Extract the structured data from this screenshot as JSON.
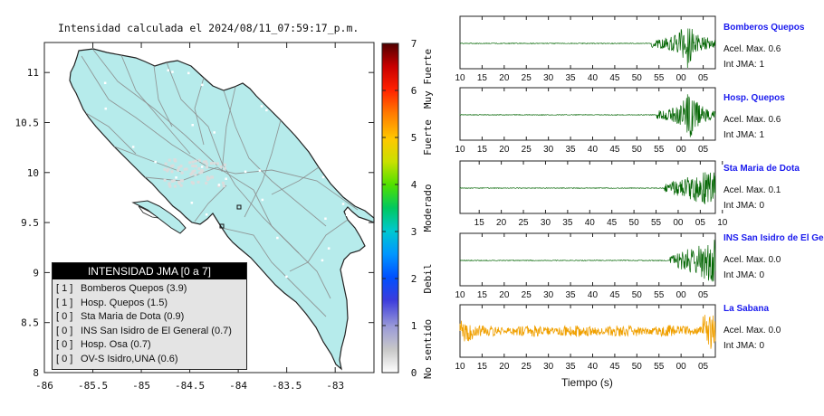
{
  "map": {
    "title": "Intensidad calculada el 2024/08/11_07:59:17_p.m.",
    "x_ticks": [
      "-86",
      "-85.5",
      "-85",
      "-84.5",
      "-84",
      "-83.5",
      "-83"
    ],
    "y_ticks": [
      "11",
      "10.5",
      "10",
      "9.5",
      "9",
      "8.5",
      "8"
    ],
    "colors": {
      "land": "#b6ebeb",
      "sea": "#ffffff",
      "border": "#222222",
      "roads": "#8a8a8a",
      "stations": "#dcdcdc"
    }
  },
  "colorbar": {
    "ticks": [
      "7",
      "6",
      "5",
      "4",
      "3",
      "2",
      "1",
      "0"
    ],
    "labels": [
      "Muy Fuerte",
      "Fuerte",
      "Moderado",
      "Debil",
      "No sentido"
    ]
  },
  "legend": {
    "header": "INTENSIDAD JMA [0 a 7]",
    "items": [
      {
        "level": "[ 1 ]",
        "text": "Bomberos Quepos (3.9)"
      },
      {
        "level": "[ 1 ]",
        "text": "Hosp. Quepos (1.5)"
      },
      {
        "level": "[ 0 ]",
        "text": "Sta Maria de Dota (0.9)"
      },
      {
        "level": "[ 0 ]",
        "text": "INS San Isidro de El General (0.7)"
      },
      {
        "level": "[ 0 ]",
        "text": "Hosp. Osa (0.7)"
      },
      {
        "level": "[ 0 ]",
        "text": "OV-S Isidro,UNA (0.6)"
      }
    ]
  },
  "stations": [
    {
      "name": "Bomberos Quepos",
      "accel": "Acel. Max. 0.6",
      "int": "Int JMA: 1",
      "color": "#006400"
    },
    {
      "name": "Hosp. Quepos",
      "accel": "Acel. Max. 0.6",
      "int": "Int JMA: 1",
      "color": "#006400"
    },
    {
      "name": "Sta Maria de Dota",
      "accel": "Acel. Max. 0.1",
      "int": "Int JMA: 0",
      "color": "#006400"
    },
    {
      "name": "INS San Isidro de El Ge",
      "accel": "Acel. Max. 0.0",
      "int": "Int JMA: 0",
      "color": "#006400"
    },
    {
      "name": "La Sabana",
      "accel": "Acel. Max. 0.0",
      "int": "Int JMA: 0",
      "color": "#f0a000"
    }
  ],
  "wave_axes": [
    [
      "10",
      "15",
      "20",
      "25",
      "30",
      "35",
      "40",
      "45",
      "50",
      "55",
      "00",
      "05"
    ],
    [
      "10",
      "15",
      "20",
      "25",
      "30",
      "35",
      "40",
      "45",
      "50",
      "55",
      "00",
      "05"
    ],
    [
      "15",
      "20",
      "25",
      "30",
      "35",
      "40",
      "45",
      "50",
      "55",
      "00",
      "05",
      "10"
    ],
    [
      "10",
      "15",
      "20",
      "25",
      "30",
      "35",
      "40",
      "45",
      "50",
      "55",
      "00",
      "05"
    ],
    [
      "10",
      "15",
      "20",
      "25",
      "30",
      "35",
      "40",
      "45",
      "50",
      "55",
      "00",
      "05"
    ]
  ],
  "time_label": "Tiempo (s)",
  "chart_data": [
    {
      "type": "heatmap",
      "title": "Intensidad calculada el 2024/08/11_07:59:17_p.m.",
      "xlim": [
        -86,
        -82.6
      ],
      "ylim": [
        8,
        11.3
      ],
      "colorbar_range": [
        0,
        7
      ],
      "station_intensities": [
        {
          "name": "Bomberos Quepos",
          "jma": 1,
          "value": 3.9
        },
        {
          "name": "Hosp. Quepos",
          "jma": 1,
          "value": 1.5
        },
        {
          "name": "Sta Maria de Dota",
          "jma": 0,
          "value": 0.9
        },
        {
          "name": "INS San Isidro de El General",
          "jma": 0,
          "value": 0.7
        },
        {
          "name": "Hosp. Osa",
          "jma": 0,
          "value": 0.7
        },
        {
          "name": "OV-S Isidro,UNA",
          "jma": 0,
          "value": 0.6
        }
      ]
    },
    {
      "type": "line",
      "xlabel": "Tiempo (s)",
      "series": [
        {
          "name": "Bomberos Quepos",
          "max_accel": 0.6,
          "jma": 1
        },
        {
          "name": "Hosp. Quepos",
          "max_accel": 0.6,
          "jma": 1
        },
        {
          "name": "Sta Maria de Dota",
          "max_accel": 0.1,
          "jma": 0
        },
        {
          "name": "INS San Isidro de El Ge",
          "max_accel": 0.0,
          "jma": 0
        },
        {
          "name": "La Sabana",
          "max_accel": 0.0,
          "jma": 0
        }
      ]
    }
  ]
}
